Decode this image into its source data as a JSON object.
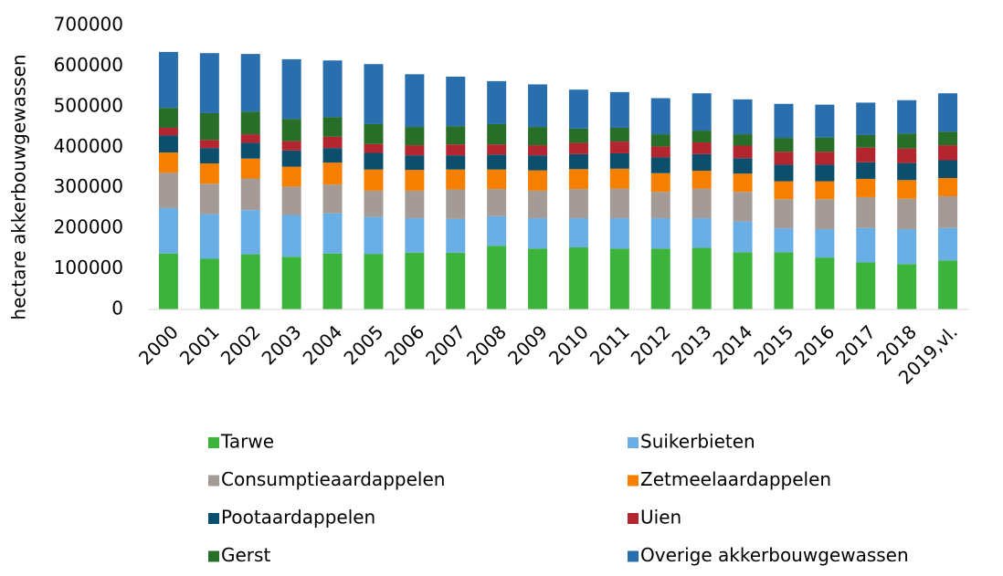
{
  "chart_data": {
    "type": "stacked_bar",
    "y_label": "hectare akkerbouwgewassen",
    "categories": [
      "2000",
      "2001",
      "2002",
      "2003",
      "2004",
      "2005",
      "2006",
      "2007",
      "2008",
      "2009",
      "2010",
      "2011",
      "2012",
      "2013",
      "2014",
      "2015",
      "2016",
      "2017",
      "2018",
      "2019,vl."
    ],
    "ylim": [
      0,
      700000
    ],
    "yticks": [
      0,
      100000,
      200000,
      300000,
      400000,
      500000,
      600000,
      700000
    ],
    "grid": false,
    "legend": "bottom",
    "series": [
      {
        "name": "Tarwe",
        "color": "#3cb43c",
        "values": [
          138000,
          125000,
          136000,
          130000,
          138000,
          137000,
          140000,
          140000,
          157000,
          150000,
          153000,
          150000,
          150000,
          152000,
          141000,
          141000,
          128000,
          116000,
          112000,
          121000
        ]
      },
      {
        "name": "Suikerbieten",
        "color": "#6aaee6",
        "values": [
          112000,
          110000,
          109000,
          103000,
          99000,
          91000,
          85000,
          83000,
          73000,
          75000,
          72000,
          75000,
          75000,
          73000,
          76000,
          59000,
          70000,
          85000,
          86000,
          80000
        ]
      },
      {
        "name": "Consumptieaardappelen",
        "color": "#a59b96",
        "values": [
          87000,
          75000,
          78000,
          70000,
          71000,
          65000,
          68000,
          73000,
          67000,
          68000,
          72000,
          73000,
          65000,
          73000,
          73000,
          72000,
          74000,
          76000,
          75000,
          78000
        ]
      },
      {
        "name": "Zetmeelaardappelen",
        "color": "#f77f00",
        "values": [
          50000,
          50000,
          49000,
          49000,
          54000,
          52000,
          51000,
          49000,
          48000,
          50000,
          49000,
          49000,
          46000,
          44000,
          45000,
          44000,
          44000,
          45000,
          46000,
          45000
        ]
      },
      {
        "name": "Pootaardappelen",
        "color": "#0b4f6c",
        "values": [
          42000,
          38000,
          39000,
          40000,
          36000,
          41000,
          36000,
          35000,
          37000,
          37000,
          37000,
          38000,
          39000,
          41000,
          38000,
          41000,
          41000,
          41000,
          42000,
          44000
        ]
      },
      {
        "name": "Uien",
        "color": "#b32630",
        "values": [
          19000,
          20000,
          21000,
          23000,
          28000,
          22000,
          25000,
          27000,
          25000,
          25000,
          28000,
          29000,
          27000,
          29000,
          31000,
          32000,
          32000,
          36000,
          36000,
          37000
        ]
      },
      {
        "name": "Gerst",
        "color": "#286e28",
        "values": [
          49000,
          66000,
          56000,
          55000,
          48000,
          49000,
          45000,
          45000,
          50000,
          45000,
          35000,
          34000,
          30000,
          29000,
          28000,
          34000,
          35000,
          31000,
          37000,
          33000
        ]
      },
      {
        "name": "Overige akkerbouwgewassen",
        "color": "#2a6fad",
        "values": [
          138000,
          148000,
          142000,
          147000,
          140000,
          148000,
          130000,
          122000,
          106000,
          105000,
          96000,
          88000,
          89000,
          92000,
          86000,
          84000,
          81000,
          80000,
          82000,
          95000
        ]
      }
    ]
  }
}
